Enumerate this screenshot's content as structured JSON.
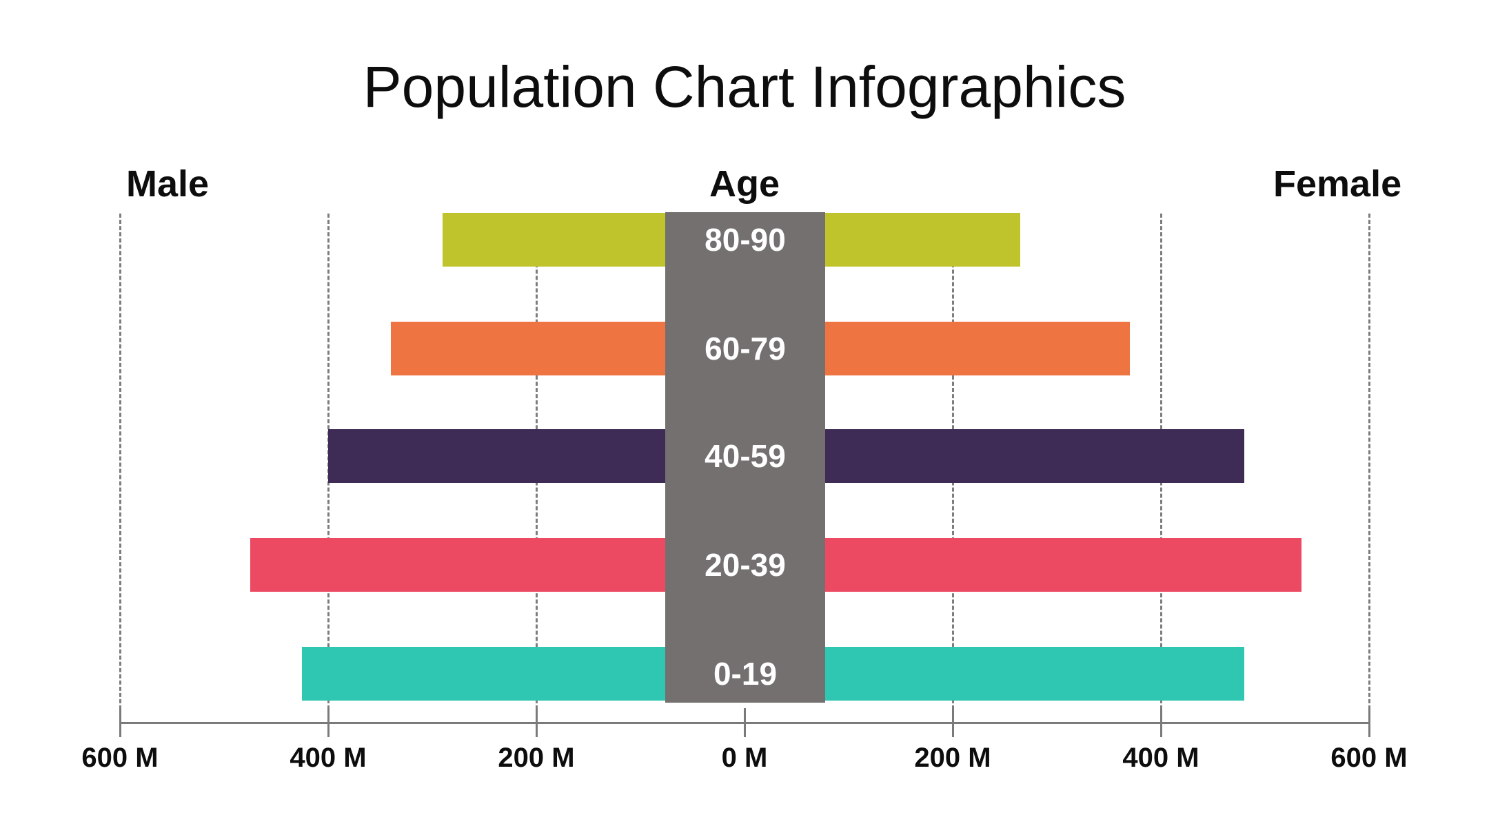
{
  "title": "Population Chart Infographics",
  "labels": {
    "male": "Male",
    "age": "Age",
    "female": "Female"
  },
  "chart_data": {
    "type": "bar",
    "subtype": "population-pyramid",
    "title": "Population Chart Infographics",
    "unit": "millions",
    "categories_top_to_bottom": [
      "80-90",
      "60-79",
      "40-59",
      "20-39",
      "0-19"
    ],
    "series": [
      {
        "name": "Male",
        "side": "left",
        "values": [
          290,
          340,
          400,
          475,
          425
        ]
      },
      {
        "name": "Female",
        "side": "right",
        "values": [
          265,
          370,
          480,
          535,
          480
        ]
      }
    ],
    "bar_colors": [
      "#bfc42d",
      "#ee7442",
      "#3e2c56",
      "#eb4a62",
      "#2fc6b2"
    ],
    "center_column_color": "#757070",
    "axis": {
      "tick_labels": [
        "600 M",
        "400 M",
        "200 M",
        "0 M",
        "200 M",
        "400 M",
        "600 M"
      ],
      "tick_values_m": [
        -600,
        -400,
        -200,
        0,
        200,
        400,
        600
      ],
      "max_m": 600,
      "gridlines": "dashed",
      "grid_color": "#7d7d7d",
      "axis_color": "#7a7a7a",
      "legend_position": "none"
    }
  }
}
